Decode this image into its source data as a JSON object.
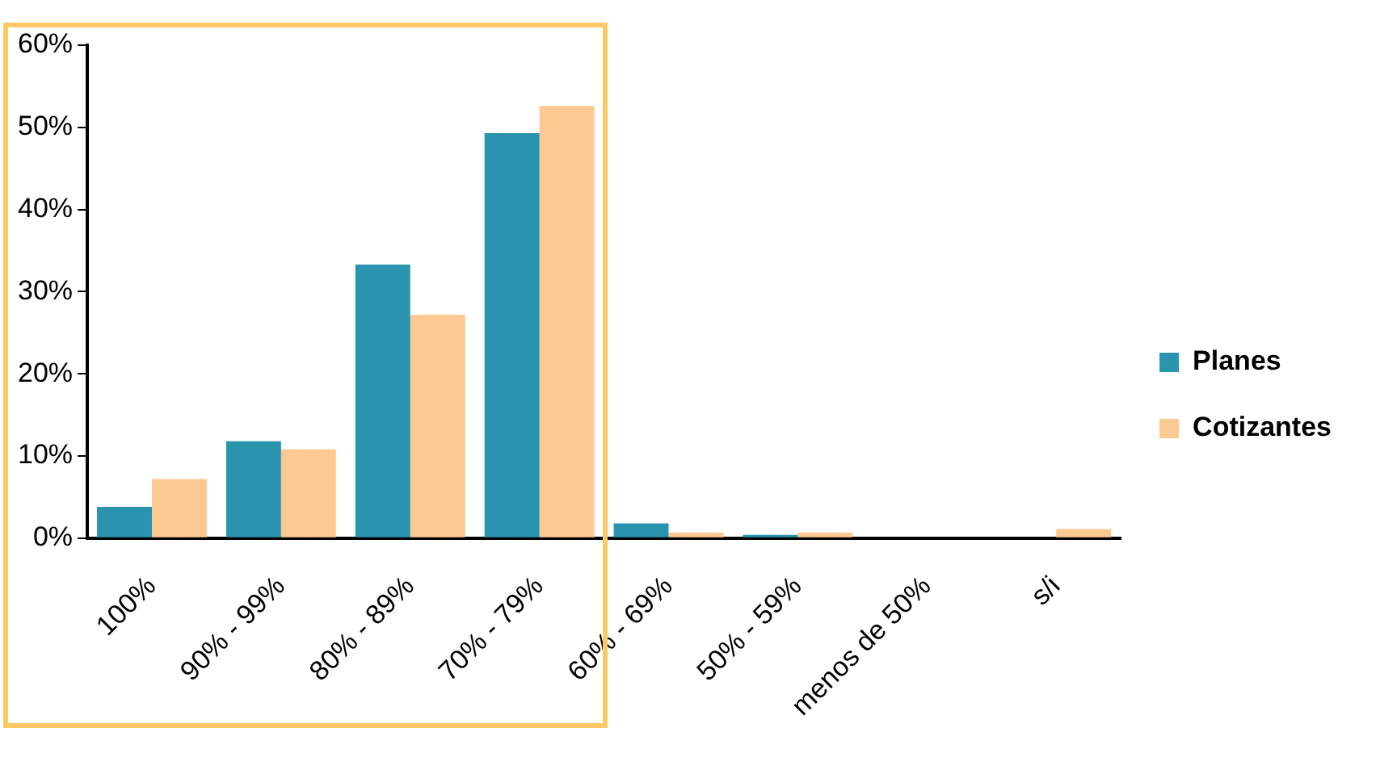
{
  "chart_data": {
    "type": "bar",
    "categories": [
      "100%",
      "90% - 99%",
      "80% - 89%",
      "70% - 79%",
      "60% - 69%",
      "50% - 59%",
      "menos de 50%",
      "s/i"
    ],
    "series": [
      {
        "name": "Planes",
        "color": "#2a93ad",
        "values": [
          3.8,
          11.8,
          33.3,
          49.3,
          1.8,
          0.4,
          0,
          0
        ]
      },
      {
        "name": "Cotizantes",
        "color": "#fcc993",
        "values": [
          7.2,
          10.8,
          27.2,
          52.6,
          0.7,
          0.7,
          0,
          1.1
        ]
      }
    ],
    "ylim": [
      0,
      60
    ],
    "yticks": [
      {
        "value": 0,
        "label": "0%"
      },
      {
        "value": 10,
        "label": "10%"
      },
      {
        "value": 20,
        "label": "20%"
      },
      {
        "value": 30,
        "label": "30%"
      },
      {
        "value": 40,
        "label": "40%"
      },
      {
        "value": 50,
        "label": "50%"
      },
      {
        "value": 60,
        "label": "60%"
      }
    ],
    "grid": false,
    "legend": "right"
  }
}
